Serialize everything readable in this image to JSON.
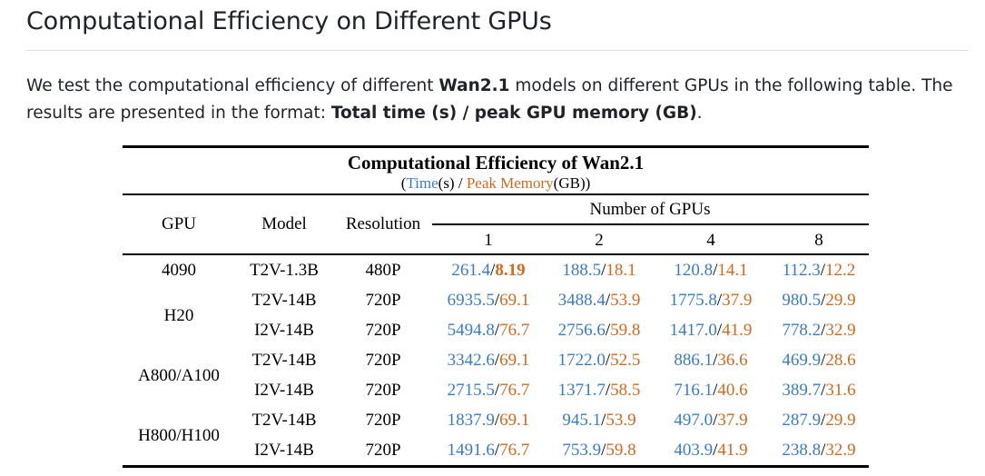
{
  "heading": "Computational Efficiency on Different GPUs",
  "intro": {
    "p1": "We test the computational efficiency of different ",
    "b1": "Wan2.1",
    "p2": " models on different GPUs in the following table. The results are presented in the format: ",
    "b2": "Total time (s) / peak GPU memory (GB)",
    "p3": "."
  },
  "table": {
    "title": "Computational Efficiency of Wan2.1",
    "subtitle": {
      "open": "(",
      "time": "Time",
      "unit1": "(s) / ",
      "mem": "Peak Memory",
      "unit2": "(GB))"
    },
    "headers": {
      "gpu": "GPU",
      "model": "Model",
      "resolution": "Resolution",
      "num_gpus": "Number of GPUs",
      "counts": [
        "1",
        "2",
        "4",
        "8"
      ]
    },
    "groups": [
      "4090",
      "H20",
      "A800/A100",
      "H800/H100"
    ],
    "rows": [
      {
        "model": "T2V-1.3B",
        "res": "480P",
        "cells": [
          {
            "t": "261.4",
            "m": "8.19"
          },
          {
            "t": "188.5",
            "m": "18.1"
          },
          {
            "t": "120.8",
            "m": "14.1"
          },
          {
            "t": "112.3",
            "m": "12.2"
          }
        ]
      },
      {
        "model": "T2V-14B",
        "res": "720P",
        "cells": [
          {
            "t": "6935.5",
            "m": "69.1"
          },
          {
            "t": "3488.4",
            "m": "53.9"
          },
          {
            "t": "1775.8",
            "m": "37.9"
          },
          {
            "t": "980.5",
            "m": "29.9"
          }
        ]
      },
      {
        "model": "I2V-14B",
        "res": "720P",
        "cells": [
          {
            "t": "5494.8",
            "m": "76.7"
          },
          {
            "t": "2756.6",
            "m": "59.8"
          },
          {
            "t": "1417.0",
            "m": "41.9"
          },
          {
            "t": "778.2",
            "m": "32.9"
          }
        ]
      },
      {
        "model": "T2V-14B",
        "res": "720P",
        "cells": [
          {
            "t": "3342.6",
            "m": "69.1"
          },
          {
            "t": "1722.0",
            "m": "52.5"
          },
          {
            "t": "886.1",
            "m": "36.6"
          },
          {
            "t": "469.9",
            "m": "28.6"
          }
        ]
      },
      {
        "model": "I2V-14B",
        "res": "720P",
        "cells": [
          {
            "t": "2715.5",
            "m": "76.7"
          },
          {
            "t": "1371.7",
            "m": "58.5"
          },
          {
            "t": "716.1",
            "m": "40.6"
          },
          {
            "t": "389.7",
            "m": "31.6"
          }
        ]
      },
      {
        "model": "T2V-14B",
        "res": "720P",
        "cells": [
          {
            "t": "1837.9",
            "m": "69.1"
          },
          {
            "t": "945.1",
            "m": "53.9"
          },
          {
            "t": "497.0",
            "m": "37.9"
          },
          {
            "t": "287.9",
            "m": "29.9"
          }
        ]
      },
      {
        "model": "I2V-14B",
        "res": "720P",
        "cells": [
          {
            "t": "1491.6",
            "m": "76.7"
          },
          {
            "t": "753.9",
            "m": "59.8"
          },
          {
            "t": "403.9",
            "m": "41.9"
          },
          {
            "t": "238.8",
            "m": "32.9"
          }
        ]
      }
    ],
    "colors": {
      "time": "#3a7cc4",
      "memory": "#d2691e"
    }
  }
}
